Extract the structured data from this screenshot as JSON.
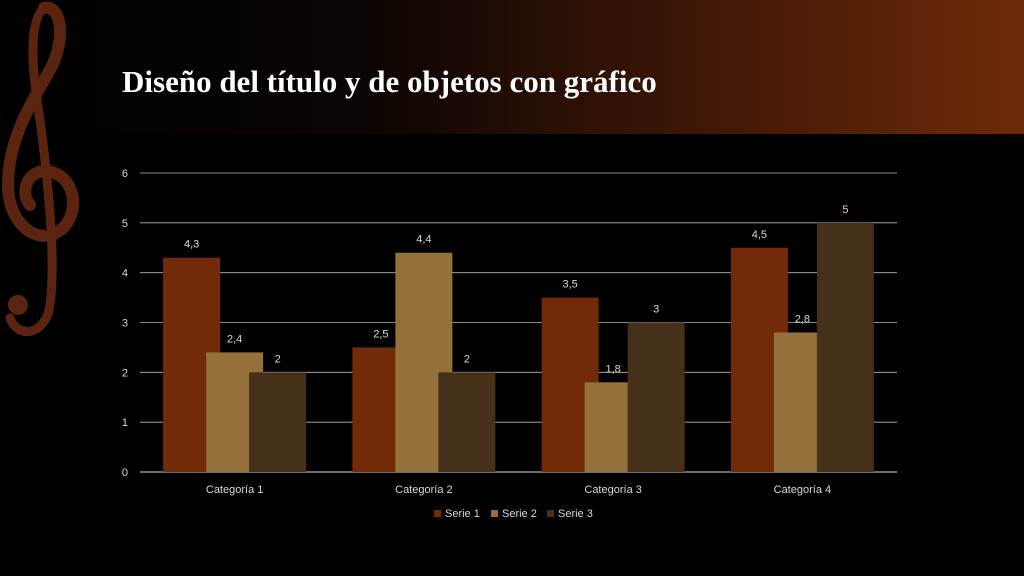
{
  "slide": {
    "title": "Diseño del título y de objetos con gráfico"
  },
  "colors": {
    "serie1": "#722a08",
    "serie2": "#94703a",
    "serie3": "#47301a",
    "grid": "#d9d9d9",
    "text": "#d9d9d9"
  },
  "chart_data": {
    "type": "bar",
    "categories": [
      "Categoría 1",
      "Categoría 2",
      "Categoría 3",
      "Categoría 4"
    ],
    "series": [
      {
        "name": "Serie 1",
        "values": [
          4.3,
          2.5,
          3.5,
          4.5
        ],
        "labels": [
          "4,3",
          "2,5",
          "3,5",
          "4,5"
        ]
      },
      {
        "name": "Serie 2",
        "values": [
          2.4,
          4.4,
          1.8,
          2.8
        ],
        "labels": [
          "2,4",
          "4,4",
          "1,8",
          "2,8"
        ]
      },
      {
        "name": "Serie 3",
        "values": [
          2,
          2,
          3,
          5
        ],
        "labels": [
          "2",
          "2",
          "3",
          "5"
        ]
      }
    ],
    "ylim": [
      0,
      6
    ],
    "yticks": [
      "0",
      "1",
      "2",
      "3",
      "4",
      "5",
      "6"
    ],
    "grid": true,
    "legend_position": "bottom"
  }
}
